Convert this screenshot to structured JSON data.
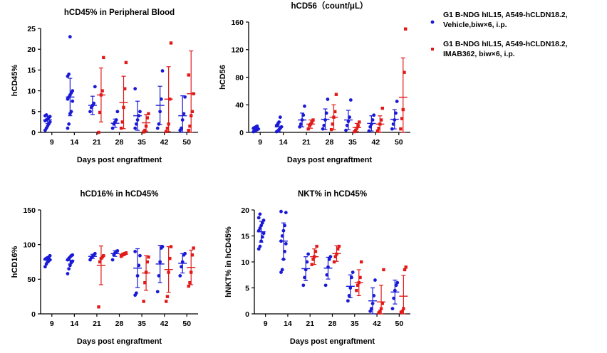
{
  "legend": [
    {
      "name": "G1 B-NDG hIL15, A549-hCLDN18.2,",
      "name_line2": "Vehicle,biw×6, i.p.",
      "color": "#1a1ad6",
      "marker": "circle"
    },
    {
      "name": "G1 B-NDG hIL15, A549-hCLDN18.2,",
      "name_line2": "IMAB362, biw×6, i.p.",
      "color": "#e11919",
      "marker": "square"
    }
  ],
  "chart_data": [
    {
      "type": "scatter",
      "title": "hCD45% in Peripheral Blood",
      "xlabel": "Days post engraftment",
      "ylabel": "hCD45%",
      "categories": [
        "9",
        "14",
        "21",
        "28",
        "35",
        "42",
        "50"
      ],
      "yticks": [
        0,
        5,
        10,
        15,
        20,
        25
      ],
      "ylim": [
        0,
        25
      ],
      "series": [
        {
          "name": "Vehicle",
          "color": "#1a1ad6",
          "marker": "circle",
          "groups": [
            {
              "mean": 3.0,
              "sd": 0.9,
              "points": [
                0.5,
                1.0,
                1.5,
                2.0,
                2.5,
                2.8,
                3.0,
                3.2,
                3.5,
                3.8,
                4.0,
                4.2
              ]
            },
            {
              "mean": 8.5,
              "sd": 4.5,
              "points": [
                1.0,
                2.0,
                4.5,
                5.0,
                7.5,
                8.0,
                8.5,
                9.0,
                9.5,
                10.0,
                13.5,
                14.0,
                23.0
              ]
            },
            {
              "mean": 6.5,
              "sd": 2.2,
              "points": [
                5.0,
                6.0,
                6.5,
                7.0,
                11.0
              ]
            },
            {
              "mean": 2.2,
              "sd": 1.0,
              "points": [
                1.0,
                2.0,
                2.5,
                3.0,
                5.0
              ]
            },
            {
              "mean": 4.0,
              "sd": 3.5,
              "points": [
                1.0,
                2.0,
                3.0,
                4.0,
                5.0,
                10.5
              ]
            },
            {
              "mean": 6.5,
              "sd": 4.6,
              "points": [
                1.0,
                2.0,
                5.0,
                8.0,
                14.8
              ]
            },
            {
              "mean": 4.0,
              "sd": 4.8,
              "points": [
                0.5,
                1.0,
                3.0,
                4.5,
                8.5
              ]
            }
          ]
        },
        {
          "name": "IMAB362",
          "color": "#e11919",
          "marker": "square",
          "groups": [
            null,
            null,
            {
              "mean": 9.0,
              "sd": 6.5,
              "points": [
                0.0,
                4.8,
                9.0,
                10.0,
                18.0
              ]
            },
            {
              "mean": 7.2,
              "sd": 6.3,
              "points": [
                1.0,
                2.5,
                6.0,
                10.5,
                16.8
              ]
            },
            {
              "mean": 2.3,
              "sd": 2.0,
              "points": [
                0.1,
                0.5,
                1.5,
                3.5,
                4.5
              ]
            },
            {
              "mean": 8.0,
              "sd": 7.8,
              "points": [
                0.2,
                1.0,
                2.0,
                8.0,
                21.5
              ]
            },
            {
              "mean": 9.3,
              "sd": 10.3,
              "points": [
                0.5,
                1.5,
                4.0,
                5.0,
                9.3,
                13.8
              ]
            }
          ]
        }
      ]
    },
    {
      "type": "scatter",
      "title": "hCD56（count/μL）",
      "xlabel": "Days post engraftment",
      "ylabel": "hCD56",
      "categories": [
        "9",
        "14",
        "21",
        "28",
        "35",
        "42",
        "50"
      ],
      "yticks": [
        0,
        40,
        80,
        120,
        160
      ],
      "ylim": [
        0,
        160
      ],
      "series": [
        {
          "name": "Vehicle",
          "color": "#1a1ad6",
          "marker": "circle",
          "groups": [
            {
              "mean": 5.0,
              "sd": 2.5,
              "points": [
                1.0,
                2.5,
                3.0,
                4.0,
                5.0,
                6.0,
                7.0,
                8.0,
                9.0
              ]
            },
            {
              "mean": 8.0,
              "sd": 7.0,
              "points": [
                1.0,
                2.0,
                4.0,
                6.0,
                8.0,
                10.0,
                12.0,
                15.0,
                22.0
              ]
            },
            {
              "mean": 18.0,
              "sd": 10.0,
              "points": [
                8.0,
                12.0,
                18.0,
                25.0,
                38.0
              ]
            },
            {
              "mean": 19.0,
              "sd": 15.0,
              "points": [
                5.0,
                10.0,
                18.0,
                28.0,
                48.0
              ]
            },
            {
              "mean": 18.0,
              "sd": 14.0,
              "points": [
                3.0,
                10.0,
                16.0,
                22.0,
                47.0
              ]
            },
            {
              "mean": 13.0,
              "sd": 11.0,
              "points": [
                2.0,
                8.0,
                12.0,
                18.0,
                25.0
              ]
            },
            {
              "mean": 19.0,
              "sd": 14.0,
              "points": [
                5.0,
                12.0,
                18.0,
                28.0,
                45.0
              ]
            }
          ]
        },
        {
          "name": "IMAB362",
          "color": "#e11919",
          "marker": "square",
          "groups": [
            null,
            null,
            {
              "mean": 12.0,
              "sd": 6.0,
              "points": [
                5.0,
                10.0,
                12.0,
                15.0,
                18.0
              ]
            },
            {
              "mean": 22.0,
              "sd": 18.0,
              "points": [
                4.0,
                12.0,
                22.0,
                30.0,
                55.0
              ]
            },
            {
              "mean": 7.0,
              "sd": 6.0,
              "points": [
                1.0,
                3.0,
                6.0,
                10.0,
                15.0
              ]
            },
            {
              "mean": 12.0,
              "sd": 12.0,
              "points": [
                2.0,
                6.0,
                12.0,
                18.0,
                35.0
              ]
            },
            {
              "mean": 51.0,
              "sd": 57.0,
              "points": [
                5.0,
                20.0,
                33.0,
                87.0,
                150.0
              ]
            }
          ]
        }
      ]
    },
    {
      "type": "scatter",
      "title": "hCD16% in hCD45%",
      "xlabel": "Days post engraftment",
      "ylabel": "hCD16%",
      "categories": [
        "9",
        "14",
        "21",
        "28",
        "35",
        "42",
        "50"
      ],
      "yticks": [
        0,
        50,
        100,
        150
      ],
      "ylim": [
        0,
        150
      ],
      "series": [
        {
          "name": "Vehicle",
          "color": "#1a1ad6",
          "marker": "circle",
          "groups": [
            {
              "mean": 78,
              "sd": 4,
              "points": [
                68,
                72,
                75,
                77,
                78,
                79,
                80,
                81,
                82,
                84
              ]
            },
            {
              "mean": 77,
              "sd": 5,
              "points": [
                58,
                65,
                70,
                74,
                76,
                78,
                80,
                82,
                84,
                85
              ]
            },
            {
              "mean": 83,
              "sd": 3,
              "points": [
                78,
                81,
                83,
                85,
                87
              ]
            },
            {
              "mean": 87,
              "sd": 4,
              "points": [
                78,
                85,
                88,
                90,
                91
              ]
            },
            {
              "mean": 66,
              "sd": 28,
              "points": [
                27,
                30,
                55,
                70,
                84,
                90
              ]
            },
            {
              "mean": 72,
              "sd": 27,
              "points": [
                32,
                55,
                75,
                95,
                97
              ]
            },
            {
              "mean": 73,
              "sd": 14,
              "points": [
                55,
                68,
                75,
                85,
                87
              ]
            }
          ]
        },
        {
          "name": "IMAB362",
          "color": "#e11919",
          "marker": "square",
          "groups": [
            null,
            null,
            {
              "mean": 70,
              "sd": 28,
              "points": [
                10,
                75,
                80,
                82,
                84
              ]
            },
            {
              "mean": 86,
              "sd": 2,
              "points": [
                83,
                85,
                86,
                87,
                88
              ]
            },
            {
              "mean": 59,
              "sd": 25,
              "points": [
                18,
                45,
                60,
                75,
                82
              ]
            },
            {
              "mean": 64,
              "sd": 33,
              "points": [
                18,
                25,
                60,
                80,
                97
              ]
            },
            {
              "mean": 67,
              "sd": 25,
              "points": [
                40,
                45,
                60,
                85,
                95
              ]
            }
          ]
        }
      ]
    },
    {
      "type": "scatter",
      "title": "NKT% in hCD45%",
      "xlabel": "Days post engraftment",
      "ylabel": "hNKT% in hCD45%",
      "categories": [
        "9",
        "14",
        "21",
        "28",
        "35",
        "42",
        "50"
      ],
      "yticks": [
        0,
        5,
        10,
        15,
        20
      ],
      "ylim": [
        0,
        20
      ],
      "series": [
        {
          "name": "Vehicle",
          "color": "#1a1ad6",
          "marker": "circle",
          "groups": [
            {
              "mean": 15.8,
              "sd": 2.0,
              "points": [
                12.5,
                13.0,
                14.0,
                14.8,
                15.5,
                16.0,
                16.5,
                17.0,
                17.5,
                18.0,
                18.5,
                19.2
              ]
            },
            {
              "mean": 14.0,
              "sd": 3.5,
              "points": [
                8.0,
                8.5,
                10.5,
                12.0,
                13.5,
                14.0,
                15.0,
                16.0,
                17.0,
                19.5,
                19.7
              ]
            },
            {
              "mean": 8.7,
              "sd": 2.3,
              "points": [
                5.5,
                7.0,
                8.5,
                10.0,
                11.5
              ]
            },
            {
              "mean": 8.8,
              "sd": 2.1,
              "points": [
                5.5,
                7.5,
                9.0,
                10.5,
                11.0
              ]
            },
            {
              "mean": 5.3,
              "sd": 2.2,
              "points": [
                2.5,
                3.5,
                5.0,
                7.0,
                8.0
              ]
            },
            {
              "mean": 2.5,
              "sd": 2.5,
              "points": [
                0.5,
                1.0,
                2.0,
                3.5,
                6.5
              ]
            },
            {
              "mean": 4.2,
              "sd": 2.3,
              "points": [
                1.0,
                3.0,
                4.5,
                5.5,
                6.0
              ]
            }
          ]
        },
        {
          "name": "IMAB362",
          "color": "#e11919",
          "marker": "square",
          "groups": [
            null,
            null,
            {
              "mean": 11.0,
              "sd": 1.5,
              "points": [
                9.5,
                10.5,
                11.0,
                12.0,
                13.0
              ]
            },
            {
              "mean": 11.6,
              "sd": 1.5,
              "points": [
                10.0,
                11.0,
                11.5,
                12.5,
                13.0
              ]
            },
            {
              "mean": 6.0,
              "sd": 2.5,
              "points": [
                4.5,
                5.5,
                6.0,
                7.0,
                10.0
              ]
            },
            {
              "mean": 2.3,
              "sd": 3.2,
              "points": [
                0.2,
                0.5,
                1.0,
                2.0,
                8.5
              ]
            },
            {
              "mean": 3.4,
              "sd": 4.0,
              "points": [
                0.3,
                0.5,
                1.0,
                8.5,
                9.0
              ]
            }
          ]
        }
      ]
    }
  ]
}
